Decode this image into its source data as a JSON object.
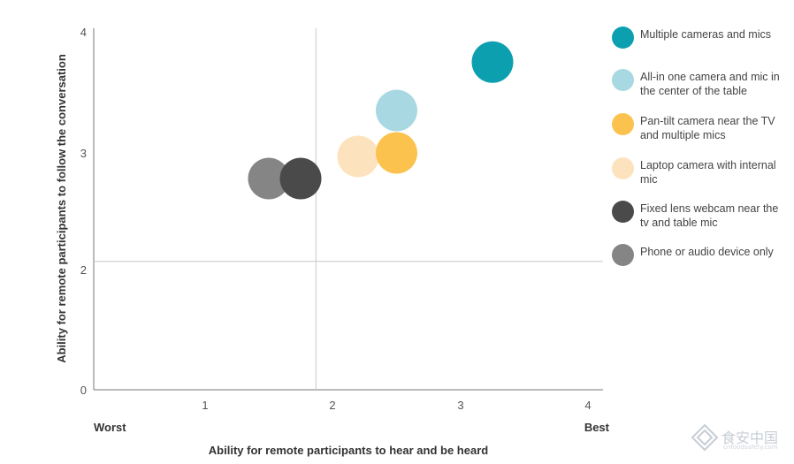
{
  "chart_data": {
    "type": "scatter",
    "xlabel": "Ability for remote participants to hear and be heard",
    "ylabel": "Ability for remote participants to follow the conversation",
    "xlim": [
      0,
      4
    ],
    "ylim": [
      0,
      4
    ],
    "x_ticks": [
      1,
      2,
      3,
      4
    ],
    "y_ticks": [
      0,
      2,
      3,
      4
    ],
    "x_range_labels": {
      "low": "Worst",
      "high": "Best"
    },
    "reference_lines": {
      "x": 1.87,
      "y": 2.07
    },
    "grid": false,
    "legend_position": "right",
    "series": [
      {
        "name": "Multiple cameras and mics",
        "color": "#0b9fb0",
        "x": 3.25,
        "y": 3.75
      },
      {
        "name": "All-in one camera and mic in the center of the table",
        "color": "#a8d8e1",
        "x": 2.5,
        "y": 3.35
      },
      {
        "name": "Pan-tilt camera near the TV and multiple mics",
        "color": "#fcc24e",
        "x": 2.5,
        "y": 3.0
      },
      {
        "name": "Laptop camera with internal mic",
        "color": "#fde3bd",
        "x": 2.2,
        "y": 2.97
      },
      {
        "name": "Fixed lens webcam near the tv and table mic",
        "color": "#4a4a4a",
        "x": 1.75,
        "y": 2.78
      },
      {
        "name": "Phone or audio device only",
        "color": "#858585",
        "x": 1.5,
        "y": 2.78
      }
    ]
  },
  "watermark": {
    "text": "食安中国",
    "sub": "cnfoodsafety.com"
  }
}
